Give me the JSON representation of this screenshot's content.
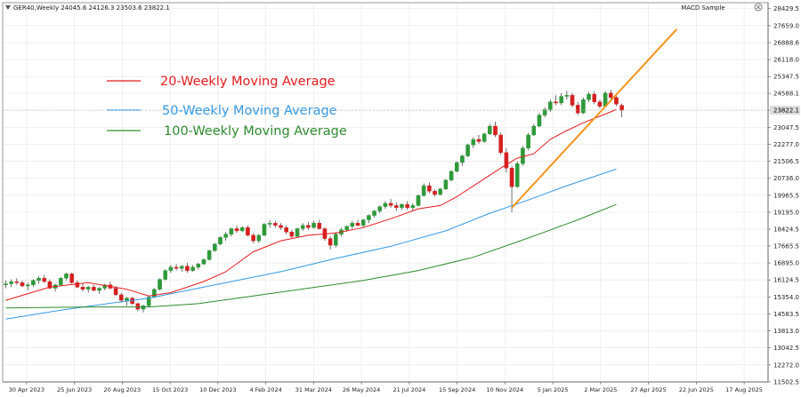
{
  "header": {
    "symbol_info": "GER40,Weekly  24045.6 24126.3 23503.6 23822.1",
    "indicator_name": "MACD Sample",
    "close_icon": "close-circle-icon"
  },
  "legend": [
    {
      "label": "20-Weekly Moving Average",
      "color": "#e41a1c"
    },
    {
      "label": "50-Weekly Moving Average",
      "color": "#3399e6"
    },
    {
      "label": "100-Weekly Moving Average",
      "color": "#2e8b2e"
    }
  ],
  "colors": {
    "bull": "#2e9a3a",
    "bear": "#d42020",
    "trendline": "#f7941d",
    "price_tag_bg": "#dcdcdc"
  },
  "chart_data": {
    "type": "candlestick",
    "timeframe": "Weekly",
    "ylim": [
      11500,
      28700
    ],
    "price_ticks": [
      "28429.5",
      "27659.0",
      "26888.6",
      "26118.0",
      "25347.5",
      "24588.1",
      "23822.1",
      "23047.5",
      "22277.0",
      "21506.5",
      "20736.0",
      "19965.5",
      "19195.0",
      "18424.5",
      "17665.5",
      "16895.0",
      "16124.5",
      "15354.0",
      "14583.5",
      "13813.0",
      "13042.5",
      "12272.0",
      "11502.5"
    ],
    "time_labels": [
      "30 Apr 2023",
      "25 Jun 2023",
      "20 Aug 2023",
      "15 Oct 2023",
      "10 Dec 2023",
      "4 Feb 2024",
      "31 Mar 2024",
      "26 May 2024",
      "21 Jul 2024",
      "15 Sep 2024",
      "10 Nov 2024",
      "5 Jan 2025",
      "2 Mar 2025",
      "27 Apr 2025",
      "22 Jun 2025",
      "17 Aug 2025"
    ],
    "current_price": "23822.1",
    "ohlc": [
      [
        15900,
        16100,
        15750,
        15950
      ],
      [
        15950,
        16150,
        15800,
        16050
      ],
      [
        16050,
        16200,
        15900,
        16000
      ],
      [
        16000,
        16100,
        15800,
        15850
      ],
      [
        15850,
        16000,
        15650,
        15900
      ],
      [
        15900,
        16150,
        15800,
        16100
      ],
      [
        16100,
        16300,
        15950,
        16200
      ],
      [
        16200,
        16350,
        16000,
        16050
      ],
      [
        16050,
        16150,
        15700,
        15750
      ],
      [
        15750,
        15950,
        15600,
        15900
      ],
      [
        15900,
        16250,
        15850,
        16200
      ],
      [
        16200,
        16450,
        16100,
        16400
      ],
      [
        16400,
        16450,
        15950,
        16000
      ],
      [
        16000,
        16100,
        15750,
        15800
      ],
      [
        15800,
        15950,
        15600,
        15700
      ],
      [
        15700,
        15850,
        15550,
        15800
      ],
      [
        15800,
        15900,
        15600,
        15650
      ],
      [
        15650,
        15800,
        15500,
        15750
      ],
      [
        15750,
        15950,
        15650,
        15900
      ],
      [
        15900,
        16050,
        15700,
        15750
      ],
      [
        15750,
        15850,
        15400,
        15450
      ],
      [
        15450,
        15550,
        15100,
        15200
      ],
      [
        15200,
        15350,
        14950,
        15300
      ],
      [
        15300,
        15350,
        15000,
        15050
      ],
      [
        15050,
        15100,
        14700,
        14800
      ],
      [
        14800,
        15000,
        14650,
        14950
      ],
      [
        14950,
        15400,
        14900,
        15350
      ],
      [
        15350,
        15750,
        15300,
        15700
      ],
      [
        15700,
        16200,
        15650,
        16150
      ],
      [
        16150,
        16600,
        16100,
        16550
      ],
      [
        16550,
        16800,
        16450,
        16700
      ],
      [
        16700,
        16850,
        16550,
        16650
      ],
      [
        16650,
        16800,
        16500,
        16750
      ],
      [
        16750,
        16900,
        16450,
        16550
      ],
      [
        16550,
        16800,
        16500,
        16700
      ],
      [
        16700,
        16900,
        16600,
        16850
      ],
      [
        16850,
        17100,
        16800,
        17050
      ],
      [
        17050,
        17500,
        17000,
        17450
      ],
      [
        17450,
        17800,
        17400,
        17750
      ],
      [
        17750,
        18100,
        17700,
        18050
      ],
      [
        18050,
        18300,
        17900,
        18200
      ],
      [
        18200,
        18500,
        18100,
        18450
      ],
      [
        18450,
        18600,
        18250,
        18350
      ],
      [
        18350,
        18550,
        18300,
        18500
      ],
      [
        18500,
        18600,
        18100,
        18150
      ],
      [
        18150,
        18250,
        17800,
        17900
      ],
      [
        17900,
        18200,
        17800,
        18150
      ],
      [
        18150,
        18700,
        18100,
        18650
      ],
      [
        18650,
        18850,
        18500,
        18700
      ],
      [
        18700,
        18800,
        18500,
        18600
      ],
      [
        18600,
        18700,
        18400,
        18500
      ],
      [
        18500,
        18600,
        18200,
        18300
      ],
      [
        18300,
        18400,
        18000,
        18100
      ],
      [
        18100,
        18500,
        18050,
        18450
      ],
      [
        18450,
        18700,
        18350,
        18600
      ],
      [
        18600,
        18750,
        18400,
        18500
      ],
      [
        18500,
        18800,
        18450,
        18700
      ],
      [
        18700,
        18850,
        18400,
        18450
      ],
      [
        18450,
        18500,
        17900,
        18000
      ],
      [
        18000,
        18100,
        17500,
        17700
      ],
      [
        17700,
        18300,
        17600,
        18200
      ],
      [
        18200,
        18500,
        18100,
        18400
      ],
      [
        18400,
        18600,
        18300,
        18550
      ],
      [
        18550,
        18800,
        18450,
        18700
      ],
      [
        18700,
        18850,
        18550,
        18600
      ],
      [
        18600,
        18900,
        18500,
        18850
      ],
      [
        18850,
        19100,
        18700,
        19050
      ],
      [
        19050,
        19300,
        18950,
        19250
      ],
      [
        19250,
        19500,
        19150,
        19450
      ],
      [
        19450,
        19700,
        19350,
        19600
      ],
      [
        19600,
        19800,
        19400,
        19500
      ],
      [
        19500,
        19650,
        19250,
        19400
      ],
      [
        19400,
        19600,
        19300,
        19550
      ],
      [
        19550,
        19700,
        19300,
        19400
      ],
      [
        19400,
        19600,
        19250,
        19500
      ],
      [
        19500,
        20000,
        19450,
        19950
      ],
      [
        19950,
        20500,
        19900,
        20400
      ],
      [
        20400,
        20550,
        20050,
        20150
      ],
      [
        20150,
        20250,
        19900,
        20000
      ],
      [
        20000,
        20300,
        19950,
        20250
      ],
      [
        20250,
        20700,
        20200,
        20650
      ],
      [
        20650,
        21100,
        20600,
        21050
      ],
      [
        21050,
        21500,
        21000,
        21450
      ],
      [
        21450,
        21800,
        21300,
        21750
      ],
      [
        21750,
        22300,
        21700,
        22250
      ],
      [
        22250,
        22600,
        22100,
        22500
      ],
      [
        22500,
        22700,
        22300,
        22400
      ],
      [
        22400,
        22800,
        22350,
        22750
      ],
      [
        22750,
        23200,
        22700,
        23100
      ],
      [
        23100,
        23300,
        22600,
        22700
      ],
      [
        22700,
        22800,
        21800,
        21900
      ],
      [
        21900,
        22100,
        21000,
        21200
      ],
      [
        21200,
        21300,
        19200,
        20350
      ],
      [
        20350,
        21500,
        20300,
        21400
      ],
      [
        21400,
        22200,
        21300,
        22100
      ],
      [
        22100,
        22800,
        22000,
        22700
      ],
      [
        22700,
        23200,
        22650,
        23100
      ],
      [
        23100,
        23700,
        23050,
        23600
      ],
      [
        23600,
        23950,
        23500,
        23850
      ],
      [
        23850,
        24300,
        23750,
        24200
      ],
      [
        24200,
        24500,
        24050,
        24150
      ],
      [
        24150,
        24600,
        24050,
        24450
      ],
      [
        24450,
        24700,
        24300,
        24500
      ],
      [
        24500,
        24600,
        23950,
        24050
      ],
      [
        24050,
        24200,
        23600,
        23700
      ],
      [
        23700,
        24400,
        23650,
        24300
      ],
      [
        24300,
        24650,
        24200,
        24550
      ],
      [
        24550,
        24700,
        24100,
        24200
      ],
      [
        24200,
        24300,
        23900,
        24000
      ],
      [
        24000,
        24700,
        23950,
        24600
      ],
      [
        24600,
        24750,
        24300,
        24400
      ],
      [
        24400,
        24500,
        24000,
        24100
      ],
      [
        24045.6,
        24126.3,
        23503.6,
        23822.1
      ]
    ],
    "series": [
      {
        "name": "20-Weekly Moving Average",
        "values": [
          [
            0,
            15200
          ],
          [
            8,
            15800
          ],
          [
            15,
            16000
          ],
          [
            22,
            15700
          ],
          [
            26,
            15400
          ],
          [
            30,
            15550
          ],
          [
            36,
            16050
          ],
          [
            40,
            16500
          ],
          [
            45,
            17400
          ],
          [
            50,
            17900
          ],
          [
            55,
            18150
          ],
          [
            60,
            18250
          ],
          [
            65,
            18500
          ],
          [
            70,
            18900
          ],
          [
            75,
            19350
          ],
          [
            79,
            19500
          ],
          [
            82,
            19900
          ],
          [
            86,
            20550
          ],
          [
            90,
            21200
          ],
          [
            93,
            21650
          ],
          [
            96,
            21850
          ],
          [
            99,
            22500
          ],
          [
            102,
            22900
          ],
          [
            105,
            23250
          ],
          [
            108,
            23550
          ],
          [
            111,
            23850
          ]
        ]
      },
      {
        "name": "50-Weekly Moving Average",
        "values": [
          [
            0,
            14350
          ],
          [
            10,
            14750
          ],
          [
            20,
            15100
          ],
          [
            26,
            15300
          ],
          [
            33,
            15650
          ],
          [
            40,
            16000
          ],
          [
            50,
            16500
          ],
          [
            60,
            17100
          ],
          [
            70,
            17650
          ],
          [
            80,
            18350
          ],
          [
            88,
            19150
          ],
          [
            95,
            19750
          ],
          [
            102,
            20400
          ],
          [
            111,
            21150
          ]
        ]
      },
      {
        "name": "100-Weekly Moving Average",
        "values": [
          [
            0,
            14850
          ],
          [
            15,
            14900
          ],
          [
            26,
            14900
          ],
          [
            35,
            15050
          ],
          [
            45,
            15400
          ],
          [
            55,
            15750
          ],
          [
            65,
            16100
          ],
          [
            75,
            16550
          ],
          [
            85,
            17150
          ],
          [
            93,
            17850
          ],
          [
            98,
            18300
          ],
          [
            104,
            18850
          ],
          [
            111,
            19550
          ]
        ]
      }
    ],
    "trendline": {
      "color": "#f7941d",
      "start": [
        92,
        19400
      ],
      "end": [
        122,
        27500
      ]
    }
  }
}
